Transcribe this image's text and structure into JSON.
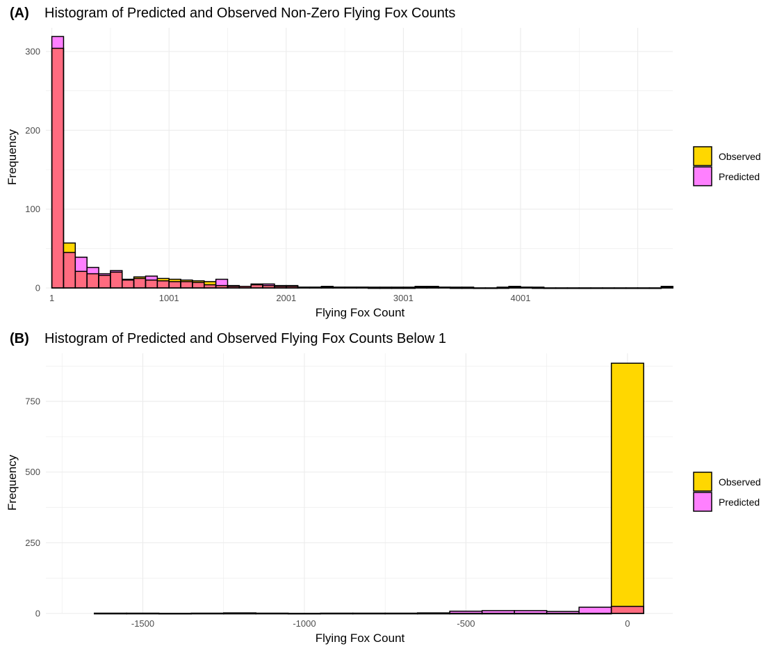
{
  "chart_data": [
    {
      "type": "bar",
      "panel_tag": "(A)",
      "title": "Histogram of Predicted and Observed Non-Zero Flying Fox Counts",
      "xlabel": "Flying Fox Count",
      "ylabel": "Frequency",
      "xlim": [
        -50,
        5300
      ],
      "ylim": [
        0,
        330
      ],
      "x_ticks": [
        1,
        1001,
        2001,
        3001,
        4001
      ],
      "x_tick_labels": [
        "1",
        "1001",
        "2001",
        "3001",
        "4001"
      ],
      "y_ticks": [
        0,
        100,
        200,
        300
      ],
      "bin_width": 100,
      "bin_starts": [
        1,
        101,
        201,
        301,
        401,
        501,
        601,
        701,
        801,
        901,
        1001,
        1101,
        1201,
        1301,
        1401,
        1501,
        1601,
        1701,
        1801,
        1901,
        2001,
        2101,
        2201,
        2301,
        2401,
        2501,
        2601,
        2701,
        2801,
        2901,
        3001,
        3101,
        3201,
        3301,
        3401,
        3501,
        3601,
        3701,
        3801,
        3901,
        4001,
        4101,
        4201,
        4301,
        4401,
        4501,
        4601,
        4701,
        4801,
        4901,
        5001,
        5101,
        5201
      ],
      "series": [
        {
          "name": "Observed",
          "color": "#FFD700",
          "values": [
            304,
            57,
            21,
            18,
            16,
            20,
            11,
            14,
            10,
            12,
            11,
            10,
            9,
            8,
            3,
            3,
            2,
            4,
            3,
            3,
            2,
            1,
            1,
            2,
            1,
            1,
            1,
            1,
            1,
            1,
            1,
            1,
            2,
            1,
            0,
            1,
            0,
            0,
            1,
            2,
            1,
            1,
            0,
            0,
            0,
            0,
            0,
            0,
            0,
            0,
            0,
            0,
            2
          ]
        },
        {
          "name": "Predicted",
          "color": "#FF80FF",
          "values": [
            319,
            45,
            39,
            26,
            18,
            22,
            10,
            12,
            15,
            9,
            8,
            8,
            7,
            4,
            11,
            2,
            2,
            5,
            5,
            2,
            3,
            1,
            1,
            1,
            1,
            1,
            1,
            0,
            0,
            0,
            0,
            2,
            1,
            1,
            1,
            0,
            0,
            0,
            0,
            1,
            1,
            0,
            0,
            0,
            0,
            0,
            0,
            0,
            0,
            0,
            0,
            0,
            1
          ]
        }
      ],
      "overlap_color": "#FF6B7F",
      "legend": "right",
      "grid": true
    },
    {
      "type": "bar",
      "panel_tag": "(B)",
      "title": "Histogram of Predicted and Observed Flying Fox Counts Below 1",
      "xlabel": "Flying Fox Count",
      "ylabel": "Frequency",
      "xlim": [
        -1800,
        140
      ],
      "ylim": [
        0,
        920
      ],
      "x_ticks": [
        -1500,
        -1000,
        -500,
        0
      ],
      "x_tick_labels": [
        "-1500",
        "-1000",
        "-500",
        "0"
      ],
      "y_ticks": [
        0,
        250,
        500,
        750
      ],
      "bin_width": 100,
      "bin_starts": [
        -1650,
        -1550,
        -1450,
        -1350,
        -1250,
        -1150,
        -1050,
        -950,
        -850,
        -750,
        -650,
        -550,
        -450,
        -350,
        -250,
        -150,
        -50
      ],
      "series": [
        {
          "name": "Observed",
          "color": "#FFD700",
          "values": [
            0,
            0,
            0,
            0,
            0,
            0,
            0,
            0,
            0,
            0,
            0,
            0,
            0,
            0,
            0,
            0,
            885
          ]
        },
        {
          "name": "Predicted",
          "color": "#FF80FF",
          "values": [
            1,
            1,
            0,
            1,
            2,
            1,
            0,
            1,
            1,
            1,
            2,
            8,
            10,
            10,
            7,
            22,
            25
          ]
        }
      ],
      "overlap_color": "#FF6B7F",
      "legend": "right",
      "grid": true
    }
  ],
  "legend_items": [
    {
      "label": "Observed",
      "color": "#FFD700"
    },
    {
      "label": "Predicted",
      "color": "#FF80FF"
    }
  ]
}
